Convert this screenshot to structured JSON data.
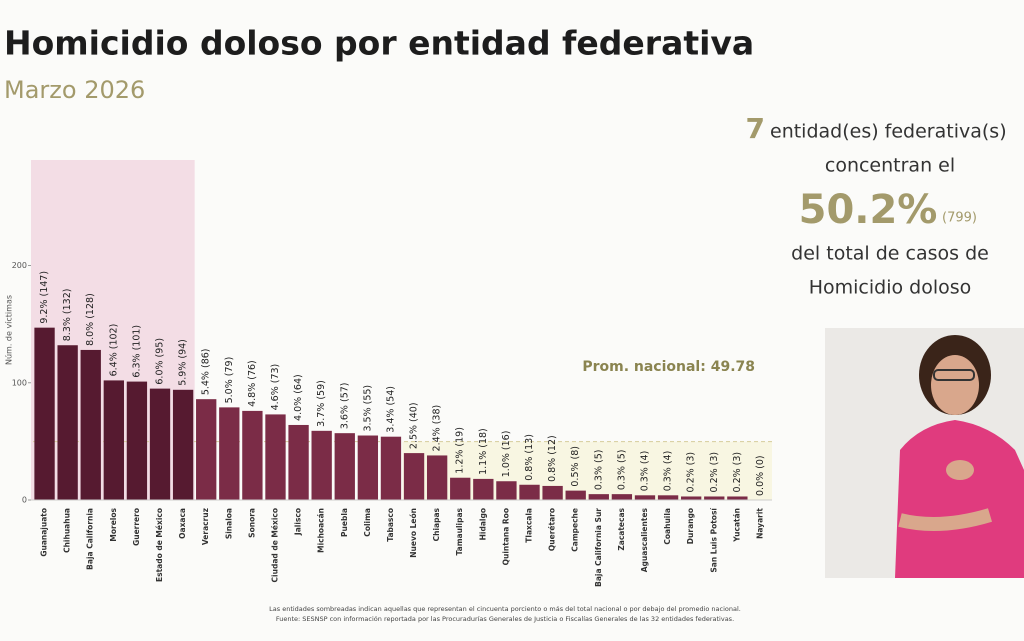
{
  "chart_data": {
    "type": "bar",
    "title": "Homicidio doloso por entidad federativa",
    "subtitle": "Marzo 2026",
    "y_label": "Núm. de víctimas",
    "categories": [
      "Guanajuato",
      "Chihuahua",
      "Baja California",
      "Morelos",
      "Guerrero",
      "Estado de México",
      "Oaxaca",
      "Veracruz",
      "Sinaloa",
      "Sonora",
      "Ciudad de México",
      "Jalisco",
      "Michoacán",
      "Puebla",
      "Colima",
      "Tabasco",
      "Nuevo León",
      "Chiapas",
      "Tamaulipas",
      "Hidalgo",
      "Quintana Roo",
      "Tlaxcala",
      "Querétaro",
      "Campeche",
      "Baja California Sur",
      "Zacatecas",
      "Aguascalientes",
      "Coahuila",
      "Durango",
      "San Luis Potosí",
      "Yucatán",
      "Nayarit"
    ],
    "values": [
      147,
      132,
      128,
      102,
      101,
      95,
      94,
      86,
      79,
      76,
      73,
      64,
      59,
      57,
      55,
      54,
      40,
      38,
      19,
      18,
      16,
      13,
      12,
      8,
      5,
      5,
      4,
      4,
      3,
      3,
      3,
      0
    ],
    "value_labels": [
      "9.2% (147)",
      "8.3% (132)",
      "8.0% (128)",
      "6.4% (102)",
      "6.3% (101)",
      "6.0% (95)",
      "5.9% (94)",
      "5.4% (86)",
      "5.0% (79)",
      "4.8% (76)",
      "4.6% (73)",
      "4.0% (64)",
      "3.7% (59)",
      "3.6% (57)",
      "3.5% (55)",
      "3.4% (54)",
      "2.5% (40)",
      "2.4% (38)",
      "1.2% (19)",
      "1.1% (18)",
      "1.0% (16)",
      "0.8% (13)",
      "0.8% (12)",
      "0.5% (8)",
      "0.3% (5)",
      "0.3% (5)",
      "0.3% (4)",
      "0.3% (4)",
      "0.2% (3)",
      "0.2% (3)",
      "0.2% (3)",
      "0.0% (0)"
    ],
    "colors": [
      "#561a30",
      "#561a30",
      "#561a30",
      "#561a30",
      "#561a30",
      "#561a30",
      "#561a30",
      "#7b2c47",
      "#7b2c47",
      "#7b2c47",
      "#7b2c47",
      "#7b2c47",
      "#7b2c47",
      "#7b2c47",
      "#7b2c47",
      "#7b2c47",
      "#7b2c47",
      "#7b2c47",
      "#7b2c47",
      "#7b2c47",
      "#7b2c47",
      "#7b2c47",
      "#7b2c47",
      "#7b2c47",
      "#7b2c47",
      "#7b2c47",
      "#7b2c47",
      "#7b2c47",
      "#7b2c47",
      "#7b2c47",
      "#7b2c47",
      "#7b2c47"
    ],
    "average": {
      "value": 49.78,
      "label": "Prom. nacional: 49.78"
    },
    "ylim": [
      0,
      290
    ],
    "yticks": [
      0,
      100,
      200
    ],
    "grid": false
  },
  "panel": {
    "count": "7",
    "line1": "entidad(es) federativa(s)",
    "line2": "concentran el",
    "percent": "50.2%",
    "cases": "(799)",
    "line3": "del total de casos de",
    "line4": "Homicidio doloso"
  },
  "footnotes": [
    "Las entidades sombreadas indican aquellas que representan el cincuenta porciento o más del total nacional o por debajo del promedio nacional.",
    "Fuente: SESNSP con información reportada por las Procuradurías Generales de Justicia o Fiscalías Generales de las 32 entidades federativas."
  ]
}
